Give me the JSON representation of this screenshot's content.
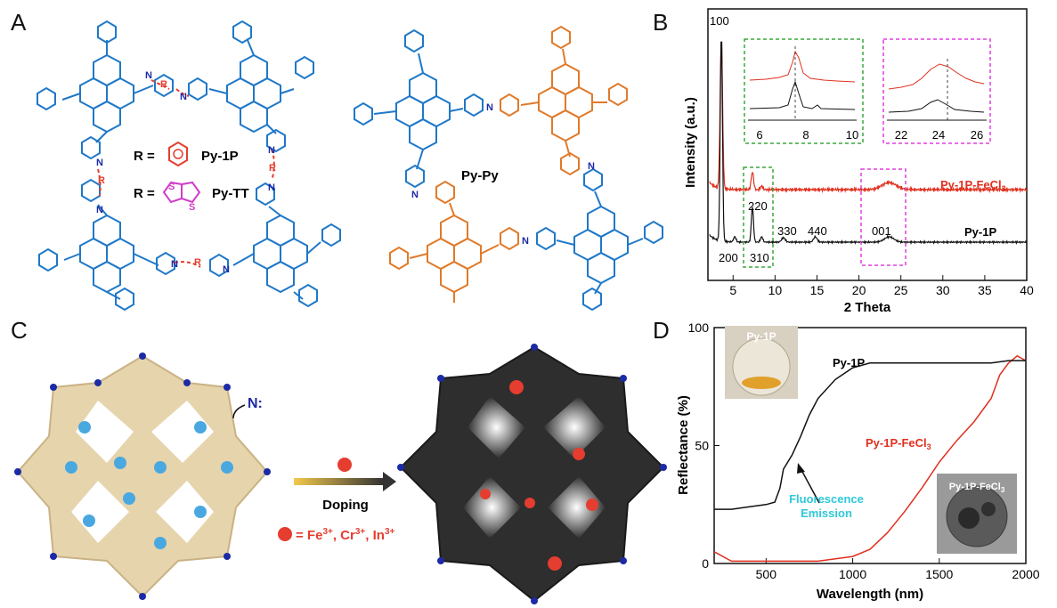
{
  "figure": {
    "panel_labels": {
      "a": "A",
      "b": "B",
      "c": "C",
      "d": "D"
    }
  },
  "panel_a": {
    "structure_labels": {
      "r_py1p": "R =",
      "py1p": "Py-1P",
      "r_pytt": "R =",
      "pytt": "Py-TT",
      "pypy": "Py-Py",
      "r_link": "R",
      "n": "N",
      "s": "S"
    },
    "colors": {
      "blue": "#1f78c8",
      "orange": "#e07a2a",
      "red": "#e53d2f",
      "navy": "#1c2aa6",
      "magenta": "#d03cc8"
    }
  },
  "panel_b": {
    "chart_data": {
      "type": "line",
      "xlabel": "2 Theta",
      "ylabel": "Intensity (a.u.)",
      "xlim": [
        2,
        40
      ],
      "xticks": [
        5,
        10,
        15,
        20,
        25,
        30,
        35,
        40
      ],
      "series": [
        {
          "name": "Py-1P",
          "color": "#111111",
          "peaks": [
            {
              "x": 3.6,
              "label": "100"
            },
            {
              "x": 5.2,
              "label": "200"
            },
            {
              "x": 7.3,
              "label": "220"
            },
            {
              "x": 8.4,
              "label": "310"
            },
            {
              "x": 11.0,
              "label": "330"
            },
            {
              "x": 14.8,
              "label": "440"
            },
            {
              "x": 23.6,
              "label": "001"
            }
          ]
        },
        {
          "name": "Py-1P-FeCl3",
          "color": "#e0301e"
        }
      ],
      "insets": [
        {
          "xlim": [
            5.5,
            10
          ],
          "xticks": [
            "6",
            "8",
            "10"
          ],
          "border": "#3aa83a"
        },
        {
          "xlim": [
            21,
            26
          ],
          "xticks": [
            "22",
            "24",
            "26"
          ],
          "border": "#e03fe0"
        }
      ]
    }
  },
  "panel_c": {
    "labels": {
      "n_site": "N:",
      "doping": "Doping",
      "ions": "= Fe",
      "ions_full": "= Fe3+, Cr3+, In3+"
    }
  },
  "panel_d": {
    "chart_data": {
      "type": "line",
      "xlabel": "Wavelength (nm)",
      "ylabel": "Reflectance (%)",
      "xlim": [
        200,
        2000
      ],
      "ylim": [
        0,
        100
      ],
      "xticks": [
        500,
        1000,
        1500,
        2000
      ],
      "yticks": [
        0,
        50,
        100
      ],
      "series": [
        {
          "name": "Py-1P",
          "color": "#111111",
          "x": [
            200,
            300,
            400,
            500,
            550,
            580,
            600,
            650,
            700,
            750,
            800,
            900,
            1000,
            1100,
            1200,
            1300,
            1500,
            1600,
            1700,
            1800,
            1900,
            2000
          ],
          "y": [
            23,
            23,
            24,
            25,
            26,
            32,
            40,
            46,
            54,
            63,
            70,
            78,
            83,
            85,
            85,
            85,
            85,
            85,
            85,
            85,
            86,
            86
          ]
        },
        {
          "name": "Py-1P-FeCl3",
          "color": "#e0301e",
          "x": [
            200,
            300,
            400,
            600,
            800,
            900,
            1000,
            1100,
            1200,
            1300,
            1400,
            1500,
            1600,
            1700,
            1800,
            1850,
            1900,
            1950,
            2000
          ],
          "y": [
            5,
            1,
            1,
            1,
            1,
            2,
            3,
            6,
            13,
            22,
            32,
            43,
            52,
            60,
            70,
            80,
            85,
            88,
            86
          ]
        }
      ],
      "annotations": {
        "py1p_label": "Py-1P",
        "fecl3_label": "Py-1P-FeCl",
        "fecl3_sub": "3",
        "fluorescence_1": "Fluorescence",
        "fluorescence_2": "Emission"
      },
      "photo_labels": {
        "top": "Py-1P",
        "bottom": "Py-1P-FeCl",
        "bottom_sub": "3"
      }
    }
  }
}
